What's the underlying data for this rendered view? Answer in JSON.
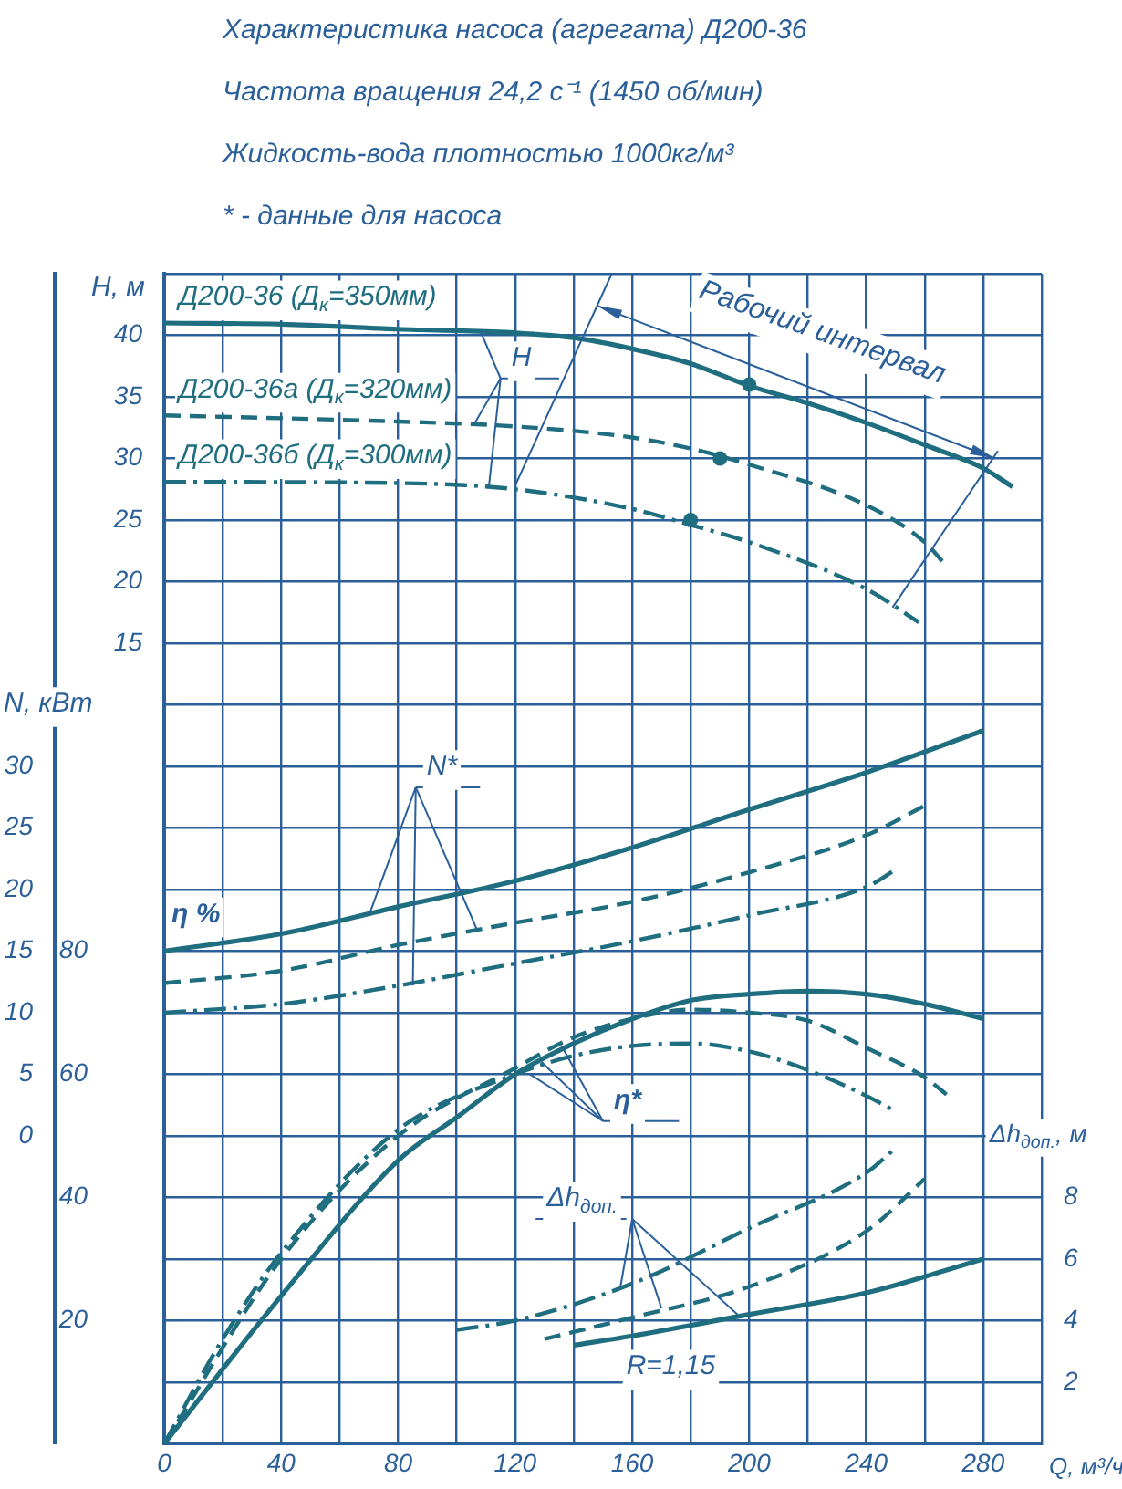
{
  "chart_data": [
    {
      "type": "line",
      "title": "Характеристика насоса (агрегата) Д200-36",
      "subtitle": "Частота вращения 24,2 с⁻¹ (1450 об/мин)",
      "xlabel": "Q, м³/ч",
      "ylabel": "H, м",
      "y2label": "N, кВт",
      "y3label": "η %",
      "annotations": [
        "Жидкость-вода плотностью 1000кг/м³",
        "* - данные для насоса",
        {
          "text": "Н",
          "x": 108,
          "y": 40.4
        },
        {
          "text": "N*",
          "x": 70,
          "y": -7.1
        },
        {
          "text": "η*",
          "x": 125,
          "y": -20
        },
        "Рабочий интервал"
      ],
      "xlim": [
        0,
        300
      ],
      "xticks": [
        0,
        {
          "value": 20,
          "label": null
        },
        40,
        {
          "value": 60,
          "label": null
        },
        80,
        {
          "value": 100,
          "label": null
        },
        120,
        {
          "value": 140,
          "label": null
        },
        160,
        {
          "value": 180,
          "label": null
        },
        200,
        {
          "value": 220,
          "label": null
        },
        240,
        {
          "value": 260,
          "label": null
        },
        280,
        {
          "value": 300,
          "label": null
        }
      ],
      "ylim": [
        -50,
        45
      ],
      "yticks": [
        15,
        20,
        25,
        30,
        35,
        40
      ],
      "y2lim": [
        -25,
        70
      ],
      "y2ticks": [
        0,
        5,
        10,
        15,
        20,
        25,
        30
      ],
      "y3lim": [
        0,
        190
      ],
      "y3ticks": [
        20,
        40,
        60,
        80
      ],
      "grid": true,
      "legend": false,
      "marker": "none",
      "series": [
        {
          "name": "Д200-36 (Д$_{к}$=350мм)",
          "color": "#1f6e80",
          "line_style": "solid",
          "x": [
            0,
            40,
            80,
            120,
            140,
            160,
            180,
            200,
            220,
            240,
            260,
            280,
            290
          ],
          "values": [
            41,
            40.9,
            40.5,
            40.2,
            39.8,
            38.9,
            37.7,
            35.9,
            34.5,
            32.9,
            31.1,
            29.2,
            27.7
          ]
        },
        {
          "name": "Д200-36а (Д$_{к}$=320мм)",
          "color": "#1f6e80",
          "line_style": "dashed",
          "x": [
            0,
            80,
            120,
            160,
            180,
            200,
            240,
            260,
            268
          ],
          "values": [
            33.5,
            33,
            32.6,
            31.7,
            30.8,
            29.5,
            26.2,
            23.2,
            21.1
          ]
        },
        {
          "name": "Д200-36б (Д$_{к}$=300мм)",
          "color": "#1f6e80",
          "line_style": "dashdot",
          "x": [
            0,
            80,
            120,
            160,
            180,
            200,
            240,
            258
          ],
          "values": [
            28.1,
            28,
            27.5,
            25.9,
            24.6,
            23.2,
            19.4,
            16.7
          ]
        },
        {
          "type": "scatter",
          "color": "#1f6e80",
          "marker": "circle",
          "x": [
            200,
            190,
            180
          ],
          "values": [
            36,
            30,
            25
          ]
        },
        {
          "color": "#1f6e80",
          "line_style": "solid",
          "axis": "y2",
          "x": [
            0,
            40,
            80,
            120,
            160,
            200,
            240,
            280
          ],
          "values": [
            15,
            16.4,
            18.6,
            20.7,
            23.4,
            26.5,
            29.5,
            32.9
          ]
        },
        {
          "color": "#1f6e80",
          "line_style": "dashed",
          "axis": "y2",
          "x": [
            0,
            40,
            80,
            120,
            160,
            200,
            240,
            260
          ],
          "values": [
            12.4,
            13.4,
            15.5,
            17.3,
            19,
            21.4,
            24.4,
            26.8
          ]
        },
        {
          "color": "#1f6e80",
          "line_style": "dashdot",
          "axis": "y2",
          "x": [
            0,
            40,
            80,
            120,
            160,
            200,
            240,
            250
          ],
          "values": [
            10,
            10.7,
            12.2,
            14,
            15.8,
            17.9,
            20.2,
            21.6
          ]
        },
        {
          "color": "#1f6e80",
          "line_style": "solid",
          "axis": "y3",
          "x": [
            0,
            40,
            80,
            100,
            120,
            140,
            160,
            180,
            200,
            220,
            240,
            260,
            280
          ],
          "values": [
            0,
            24,
            46,
            53,
            60,
            65,
            69,
            72,
            73,
            73.5,
            73,
            71.4,
            69
          ]
        },
        {
          "color": "#1f6e80",
          "line_style": "dashed",
          "axis": "y3",
          "x": [
            0,
            40,
            80,
            120,
            140,
            160,
            180,
            200,
            220,
            240,
            260,
            268
          ],
          "values": [
            0,
            30,
            50,
            61,
            66,
            69,
            70.5,
            70,
            68.7,
            64.3,
            59.5,
            56.5
          ]
        },
        {
          "color": "#1f6e80",
          "line_style": "dashdot",
          "axis": "y3",
          "x": [
            0,
            20,
            40,
            80,
            120,
            140,
            160,
            180,
            200,
            220,
            240,
            250
          ],
          "values": [
            0,
            17,
            31,
            51,
            60,
            63,
            64.6,
            65,
            63.7,
            60.7,
            56.5,
            54
          ]
        }
      ]
    },
    {
      "type": "line",
      "ylabel": "Δh$_{доп.}$, м",
      "annotations": [
        {
          "text": "Δh$_{доп.}$",
          "x": 196,
          "y": 4.2
        },
        "R=1,15"
      ],
      "xlim": [
        0,
        300
      ],
      "ylim": [
        0,
        38
      ],
      "yticks": [
        2,
        4,
        6,
        8
      ],
      "tick_labels": "y",
      "marker": "none",
      "series": [
        {
          "color": "#1f6e80",
          "line_style": "solid",
          "x": [
            140,
            160,
            200,
            240,
            280
          ],
          "values": [
            3.2,
            3.5,
            4.2,
            4.9,
            6
          ]
        },
        {
          "color": "#1f6e80",
          "line_style": "dashed",
          "x": [
            130,
            160,
            200,
            240,
            260
          ],
          "values": [
            3.4,
            4.1,
            5.1,
            6.9,
            8.6
          ]
        },
        {
          "color": "#1f6e80",
          "line_style": "dashdot",
          "x": [
            100,
            120,
            160,
            200,
            240,
            250
          ],
          "values": [
            3.7,
            4,
            5.2,
            7,
            8.8,
            9.6
          ]
        }
      ]
    }
  ]
}
